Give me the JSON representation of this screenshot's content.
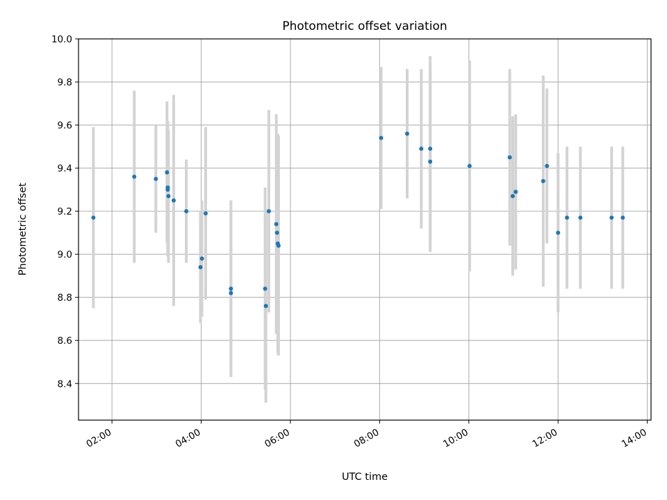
{
  "chart_data": {
    "type": "scatter",
    "title": "Photometric offset variation",
    "xlabel": "UTC time",
    "ylabel": "Photometric offset",
    "xlim": [
      "01:15",
      "14:05"
    ],
    "ylim": [
      8.23,
      10.0
    ],
    "grid": true,
    "legend": "none",
    "x_tick_labels": [
      "02:00",
      "04:00",
      "06:00",
      "08:00",
      "10:00",
      "12:00",
      "14:00"
    ],
    "y_tick_labels": [
      "8.4",
      "8.6",
      "8.8",
      "9.0",
      "9.2",
      "9.4",
      "9.6",
      "9.8",
      "10.0"
    ],
    "colors": {
      "marker": "#1f77b4",
      "error_bar": "#d3d3d3",
      "grid": "#b0b0b0"
    },
    "series": [
      {
        "x": [
          "01:35",
          "02:30",
          "02:59",
          "03:14",
          "03:15",
          "03:15",
          "03:16",
          "03:23",
          "03:40",
          "03:59",
          "04:01",
          "04:06",
          "04:40",
          "04:40",
          "05:26",
          "05:27",
          "05:31",
          "05:41",
          "05:42",
          "05:43",
          "05:44",
          "08:02",
          "08:37",
          "08:56",
          "09:08",
          "09:08",
          "10:01",
          "10:55",
          "10:59",
          "11:03",
          "11:40",
          "11:45",
          "12:00",
          "12:12",
          "12:30",
          "13:12",
          "13:27"
        ],
        "y": [
          9.17,
          9.36,
          9.35,
          9.38,
          9.31,
          9.3,
          9.27,
          9.25,
          9.2,
          8.94,
          8.98,
          9.19,
          8.84,
          8.82,
          8.84,
          8.76,
          9.2,
          9.14,
          9.1,
          9.05,
          9.04,
          9.54,
          9.56,
          9.49,
          9.49,
          9.43,
          9.41,
          9.45,
          9.27,
          9.29,
          9.34,
          9.41,
          9.1,
          9.17,
          9.17,
          9.17,
          9.17
        ],
        "y_err": [
          0.42,
          0.4,
          0.25,
          0.33,
          0.31,
          0.31,
          0.31,
          0.49,
          0.24,
          0.26,
          0.27,
          0.4,
          0.41,
          0.38,
          0.47,
          0.45,
          0.47,
          0.51,
          0.46,
          0.51,
          0.51,
          0.33,
          0.3,
          0.37,
          0.43,
          0.42,
          0.49,
          0.41,
          0.37,
          0.36,
          0.49,
          0.36,
          0.37,
          0.33,
          0.33,
          0.33,
          0.33
        ]
      }
    ]
  }
}
